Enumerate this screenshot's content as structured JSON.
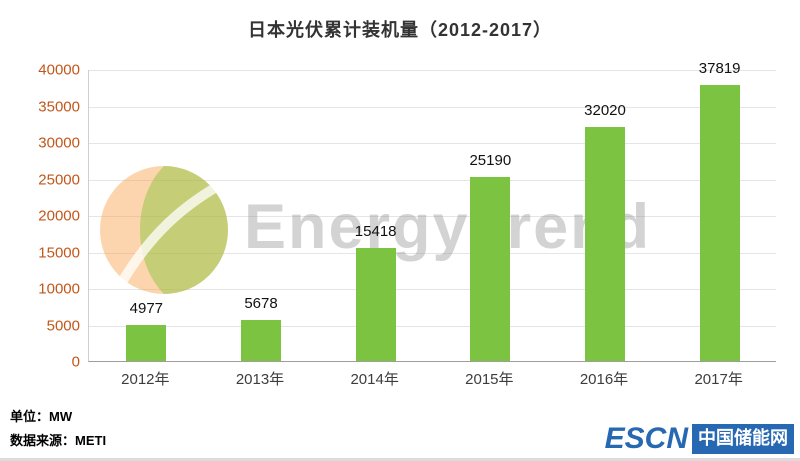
{
  "chart_data": {
    "type": "bar",
    "title": "日本光伏累计装机量（2012-2017）",
    "categories": [
      "2012年",
      "2013年",
      "2014年",
      "2015年",
      "2016年",
      "2017年"
    ],
    "values": [
      4977,
      5678,
      15418,
      25190,
      32020,
      37819
    ],
    "xlabel": "",
    "ylabel": "",
    "ylim": [
      0,
      40000
    ],
    "ytick_step": 5000,
    "bar_color": "#7cc342",
    "grid": true,
    "legend": false
  },
  "colors": {
    "bar": "#7cc342",
    "y_tick_text": "#c2571a",
    "x_tick_text": "#3d3d3d",
    "logo_blue": "#2768b2"
  },
  "watermark": {
    "text": "EnergyTrend"
  },
  "footer": {
    "unit_label": "单位：MW",
    "source_label": "数据来源：METI"
  },
  "logo": {
    "brand": "ESCN",
    "brand_cn": "中国储能网"
  }
}
